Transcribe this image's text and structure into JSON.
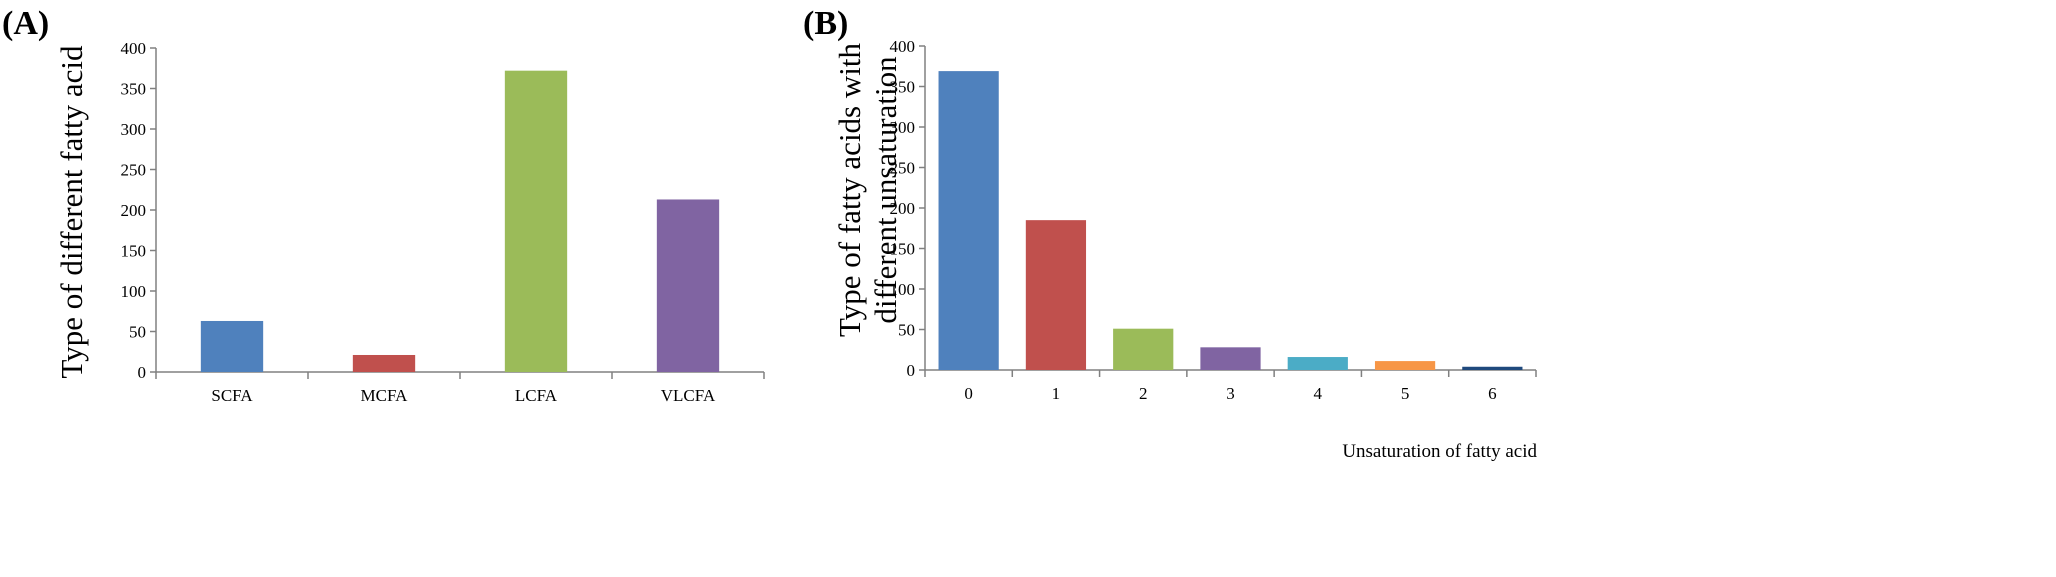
{
  "chart_data": [
    {
      "panel": "(A)",
      "type": "bar",
      "categories": [
        "SCFA",
        "MCFA",
        "LCFA",
        "VLCFA"
      ],
      "values": [
        63,
        21,
        372,
        213
      ],
      "colors": [
        "#4F81BD",
        "#C0504D",
        "#9BBB59",
        "#8064A2"
      ],
      "ylabel": "Type of different fatty acid",
      "xlabel": "",
      "ylim": [
        0,
        400
      ],
      "yticks": [
        "0",
        "50",
        "100",
        "150",
        "200",
        "250",
        "300",
        "350",
        "400"
      ],
      "grid": false,
      "legend": "none"
    },
    {
      "panel": "(B)",
      "type": "bar",
      "categories": [
        "0",
        "1",
        "2",
        "3",
        "4",
        "5",
        "6"
      ],
      "values": [
        369,
        185,
        51,
        28,
        16,
        11,
        4
      ],
      "colors": [
        "#4F81BD",
        "#C0504D",
        "#9BBB59",
        "#8064A2",
        "#4BACC6",
        "#F79646",
        "#1F497D"
      ],
      "ylabel_lines": [
        "Type of fatty acids with",
        "different unsaturation"
      ],
      "xlabel": "Unsaturation of fatty acid",
      "ylim": [
        0,
        400
      ],
      "yticks": [
        "0",
        "50",
        "100",
        "150",
        "200",
        "250",
        "300",
        "350",
        "400"
      ],
      "grid": false,
      "legend": "none"
    }
  ]
}
